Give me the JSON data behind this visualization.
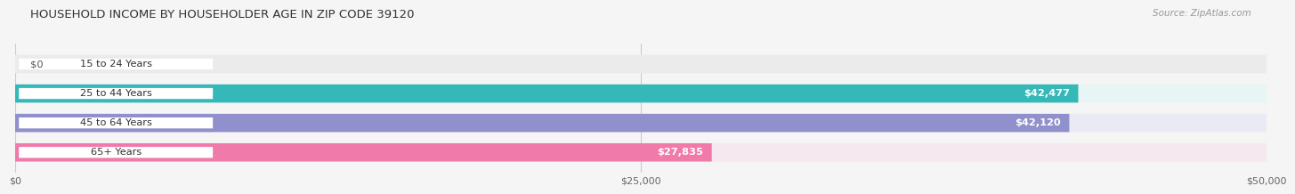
{
  "title": "HOUSEHOLD INCOME BY HOUSEHOLDER AGE IN ZIP CODE 39120",
  "source": "Source: ZipAtlas.com",
  "categories": [
    "15 to 24 Years",
    "25 to 44 Years",
    "45 to 64 Years",
    "65+ Years"
  ],
  "values": [
    0,
    42477,
    42120,
    27835
  ],
  "value_labels": [
    "$0",
    "$42,477",
    "$42,120",
    "$27,835"
  ],
  "bar_colors": [
    "#c9a8d4",
    "#35b8b8",
    "#9090cc",
    "#f07aaa"
  ],
  "bar_bg_colors": [
    "#ebebeb",
    "#e8f5f5",
    "#eaeaf5",
    "#f5e8ef"
  ],
  "x_max": 50000,
  "x_tick_vals": [
    0,
    25000,
    50000
  ],
  "x_tick_labels": [
    "$0",
    "$25,000",
    "$50,000"
  ],
  "background_color": "#f5f5f5",
  "label_inside_threshold": 3000,
  "value_label_color_inside": "#ffffff",
  "value_label_color_outside": "#555555"
}
